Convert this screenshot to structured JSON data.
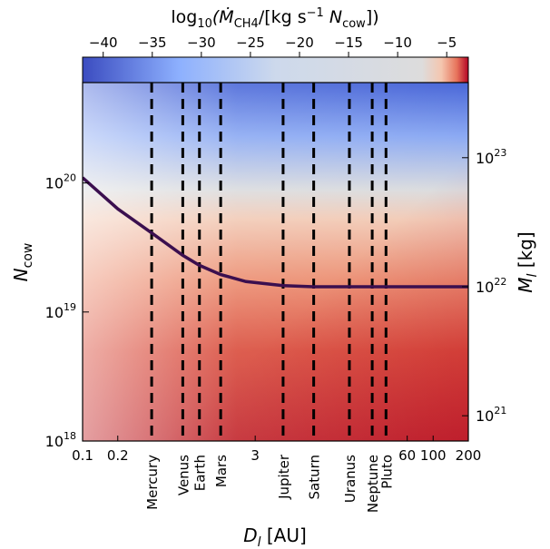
{
  "chart_data": {
    "type": "heatmap",
    "colorbar": {
      "label_prefix": "log",
      "label_sub": "10",
      "label_rest": "(Ṁ",
      "label_ch4": "CH4",
      "label_mid": "/[kg s",
      "label_exp": "−1",
      "label_n": " N",
      "label_cow": "cow",
      "label_end": "])",
      "ticks": [
        {
          "value": -40,
          "label": "−40"
        },
        {
          "value": -35,
          "label": "−35"
        },
        {
          "value": -30,
          "label": "−30"
        },
        {
          "value": -25,
          "label": "−25"
        },
        {
          "value": -20,
          "label": "−20"
        },
        {
          "value": -15,
          "label": "−15"
        },
        {
          "value": -10,
          "label": "−10"
        },
        {
          "value": -5,
          "label": "−5"
        }
      ],
      "range": [
        -42.1,
        -2.8
      ],
      "colors": [
        "#3b4cc0",
        "#dddcdc",
        "#b40426"
      ]
    },
    "x_axis": {
      "label_main": "D",
      "label_sub": "l",
      "label_unit": " [AU]",
      "scale": "log",
      "range": [
        0.1,
        200
      ],
      "ticks": [
        {
          "value": 0.1,
          "label": "0.1"
        },
        {
          "value": 0.2,
          "label": "0.2"
        },
        {
          "value": 3,
          "label": "3"
        },
        {
          "value": 60,
          "label": "60"
        },
        {
          "value": 100,
          "label": "100"
        },
        {
          "value": 200,
          "label": "200"
        }
      ]
    },
    "y_left": {
      "label_main": "N",
      "label_sub": "cow",
      "scale": "log",
      "range": [
        1e+18,
        6e+20
      ],
      "ticks": [
        {
          "value": 1e+18,
          "base": "10",
          "exp": "18"
        },
        {
          "value": 1e+19,
          "base": "10",
          "exp": "19"
        },
        {
          "value": 1e+20,
          "base": "10",
          "exp": "20"
        }
      ]
    },
    "y_right": {
      "label_main": "M",
      "label_sub": "l",
      "label_unit": " [kg]",
      "scale": "log",
      "ticks": [
        {
          "value": 1e+21,
          "base": "10",
          "exp": "21"
        },
        {
          "value": 1e+22,
          "base": "10",
          "exp": "22"
        },
        {
          "value": 1e+23,
          "base": "10",
          "exp": "23"
        }
      ]
    },
    "planets": [
      {
        "name": "Mercury",
        "distance": 0.39
      },
      {
        "name": "Venus",
        "distance": 0.72
      },
      {
        "name": "Earth",
        "distance": 1.0
      },
      {
        "name": "Mars",
        "distance": 1.52
      },
      {
        "name": "Jupiter",
        "distance": 5.2
      },
      {
        "name": "Saturn",
        "distance": 9.5
      },
      {
        "name": "Uranus",
        "distance": 19.2
      },
      {
        "name": "Neptune",
        "distance": 30.1
      },
      {
        "name": "Pluto",
        "distance": 39.5
      }
    ],
    "boundary_line": {
      "color": "#3b0f4f",
      "x": [
        0.1,
        0.2,
        0.39,
        0.72,
        1.0,
        1.52,
        2.5,
        5.2,
        9.5,
        19.2,
        39.5,
        200
      ],
      "y": [
        1.1e+20,
        6.3e+19,
        4.1e+19,
        2.75e+19,
        2.3e+19,
        1.95e+19,
        1.72e+19,
        1.6e+19,
        1.57e+19,
        1.57e+19,
        1.57e+19,
        1.57e+19
      ]
    }
  }
}
